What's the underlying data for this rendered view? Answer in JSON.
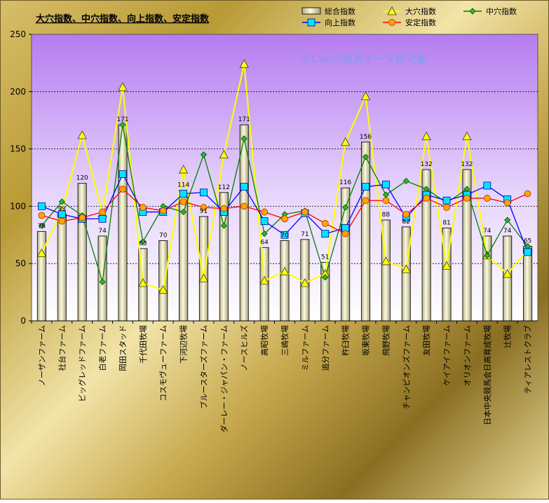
{
  "chart_data": {
    "type": "bar",
    "title": "大穴指数、中穴指数、向上指数、安定指数",
    "watermark": "©Canの競馬データ研究室",
    "ylim": [
      0,
      250
    ],
    "yticks": [
      0,
      50,
      100,
      150,
      200,
      250
    ],
    "grid": true,
    "legend_position": "top-right",
    "categories": [
      "ノーザンファーム",
      "社台ファーム",
      "ビッグレッドファーム",
      "白老ファーム",
      "岡田スタッド",
      "千代田牧場",
      "コスモヴューファーム",
      "下河辺牧場",
      "ブルースターズファーム",
      "ダーレー・ジャパン・ファーム",
      "ノースヒルズ",
      "高昭牧場",
      "三嶋牧場",
      "ミルファーム",
      "追分ファーム",
      "杵臼牧場",
      "坂東牧場",
      "飛野牧場",
      "チャンピオンズファーム",
      "友田牧場",
      "ケイアイファーム",
      "オリオンファーム",
      "日本中央競馬会日高育成牧場",
      "辻牧場",
      "ティアレストクラブ"
    ],
    "series": [
      {
        "name": "総合指数",
        "type": "bar",
        "color": "#f2f0d0",
        "values": [
          78,
          93,
          120,
          74,
          171,
          63,
          70,
          114,
          91,
          112,
          171,
          64,
          70,
          71,
          51,
          116,
          156,
          88,
          82,
          132,
          81,
          132,
          74,
          74,
          65
        ],
        "labels": [
          "78",
          "93",
          "120",
          "74",
          "171",
          "63",
          "70",
          "114",
          "91",
          "112",
          "171",
          "64",
          "70",
          "71",
          "51",
          "116",
          "156",
          "88",
          "82",
          "132",
          "81",
          "132",
          "74",
          "74",
          "65"
        ]
      },
      {
        "name": "大穴指数",
        "type": "line",
        "marker": "triangle",
        "color": "#ffff00",
        "values": [
          59,
          96,
          162,
          94,
          204,
          33,
          27,
          132,
          37,
          145,
          224,
          35,
          43,
          33,
          41,
          156,
          196,
          52,
          45,
          161,
          48,
          161,
          57,
          41,
          62
        ]
      },
      {
        "name": "中穴指数",
        "type": "line",
        "marker": "diamond",
        "color": "#008000",
        "values": [
          83,
          104,
          92,
          34,
          171,
          69,
          100,
          95,
          145,
          83,
          159,
          76,
          93,
          96,
          38,
          99,
          143,
          110,
          122,
          115,
          103,
          115,
          57,
          88,
          65
        ]
      },
      {
        "name": "向上指数",
        "type": "line",
        "marker": "square",
        "color": "#0000ff",
        "values": [
          100,
          93,
          89,
          89,
          128,
          95,
          95,
          111,
          112,
          95,
          117,
          87,
          75,
          94,
          76,
          81,
          117,
          119,
          90,
          110,
          105,
          110,
          118,
          106,
          60
        ]
      },
      {
        "name": "安定指数",
        "type": "line",
        "marker": "circle",
        "color": "#ff0000",
        "values": [
          92,
          87,
          90,
          95,
          115,
          99,
          96,
          104,
          99,
          98,
          100,
          95,
          89,
          95,
          85,
          76,
          105,
          105,
          93,
          107,
          99,
          107,
          107,
          103,
          111
        ]
      }
    ]
  }
}
